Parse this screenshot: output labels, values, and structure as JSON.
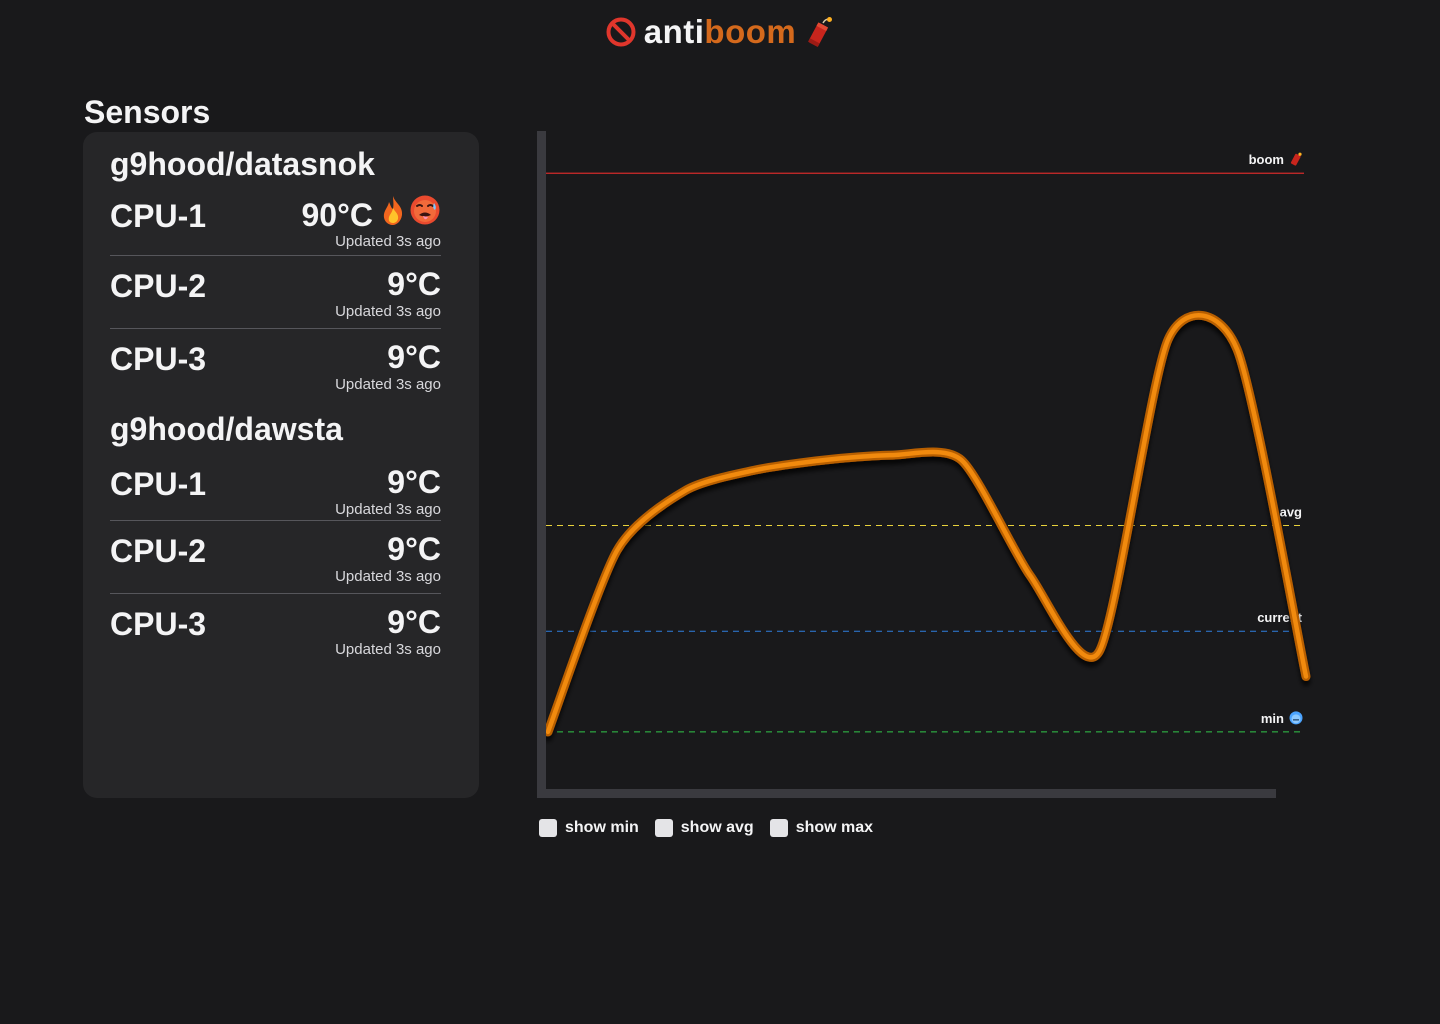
{
  "header": {
    "brand_anti": "anti",
    "brand_boom": "boom",
    "no_icon": "no-entry-icon",
    "dynamite_icon": "firecracker-icon",
    "boom_color": "#d4691c"
  },
  "sensors": {
    "title": "Sensors",
    "hosts": [
      {
        "name": "g9hood/datasnok",
        "cpus": [
          {
            "name": "CPU-1",
            "temp": "90°C",
            "updated": "Updated 3s ago",
            "hot": true
          },
          {
            "name": "CPU-2",
            "temp": "9°C",
            "updated": "Updated 3s ago",
            "hot": false
          },
          {
            "name": "CPU-3",
            "temp": "9°C",
            "updated": "Updated 3s ago",
            "hot": false
          }
        ]
      },
      {
        "name": "g9hood/dawsta",
        "cpus": [
          {
            "name": "CPU-1",
            "temp": "9°C",
            "updated": "Updated 3s ago",
            "hot": false
          },
          {
            "name": "CPU-2",
            "temp": "9°C",
            "updated": "Updated 3s ago",
            "hot": false
          },
          {
            "name": "CPU-3",
            "temp": "9°C",
            "updated": "Updated 3s ago",
            "hot": false
          }
        ]
      }
    ]
  },
  "chart_data": {
    "type": "line",
    "title": "",
    "xlabel": "",
    "ylabel": "",
    "grid": false,
    "x": [
      0,
      1,
      2,
      3,
      4,
      5,
      6,
      7,
      8,
      9,
      10,
      11
    ],
    "series": [
      {
        "values": [
          4,
          40,
          52,
          56,
          58,
          59,
          58,
          35,
          20,
          82,
          80,
          15
        ],
        "color": "#f18a0e"
      }
    ],
    "ylim": [
      0,
      122
    ],
    "reference_lines": [
      {
        "label": "boom",
        "value": 115,
        "color": "#d12a2a",
        "style": "solid",
        "icon": "firecracker-icon"
      },
      {
        "label": "avg",
        "value": 45,
        "color": "#e8d23c",
        "style": "dashed"
      },
      {
        "label": "current",
        "value": 24,
        "color": "#2f7fe0",
        "style": "dashed"
      },
      {
        "label": "min",
        "value": 4,
        "color": "#31c64a",
        "style": "dashed",
        "icon": "cold-face-icon"
      }
    ]
  },
  "toggles": [
    {
      "label": "show min",
      "checked": false
    },
    {
      "label": "show avg",
      "checked": false
    },
    {
      "label": "show max",
      "checked": false
    }
  ]
}
